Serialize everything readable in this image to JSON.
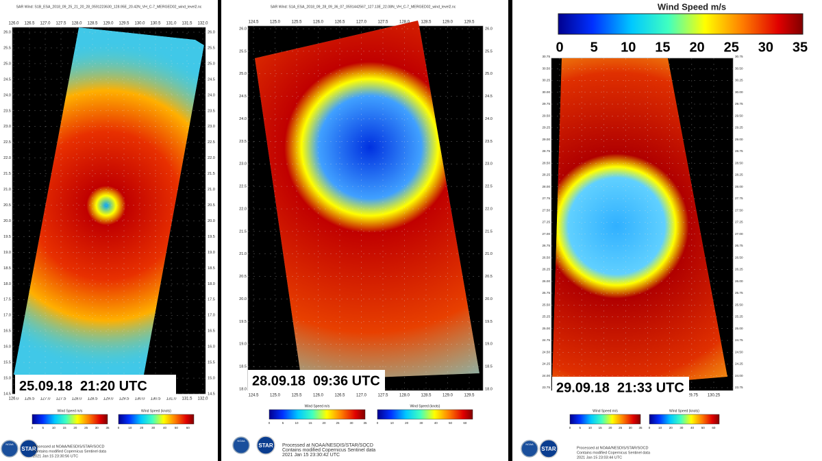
{
  "panels": [
    {
      "title": "SAR Wind: S1B_ESA_2018_09_25_21_20_28_0591223630_128.95E_20.42N_VH_C-7_MERGED02_wind_level2.nc",
      "lon_ticks": [
        "126.0",
        "126.5",
        "127.0",
        "127.5",
        "128.0",
        "128.5",
        "129.0",
        "129.5",
        "130.0",
        "130.5",
        "131.0",
        "131.5",
        "132.0"
      ],
      "lat_ticks": [
        "26.0",
        "25.5",
        "25.0",
        "24.5",
        "24.0",
        "23.5",
        "23.0",
        "22.5",
        "22.0",
        "21.5",
        "21.0",
        "20.5",
        "20.0",
        "19.5",
        "19.0",
        "18.5",
        "18.0",
        "17.5",
        "17.0",
        "16.5",
        "16.0",
        "15.5",
        "15.0",
        "14.5"
      ],
      "date": "25.09.18  21:20 UTC",
      "colorbars": [
        {
          "title": "Wind Speed m/s",
          "labels": [
            "0",
            "5",
            "10",
            "15",
            "20",
            "25",
            "30",
            "35"
          ]
        },
        {
          "title": "Wind Speed (knots)",
          "labels": [
            "0",
            "10",
            "20",
            "30",
            "40",
            "50",
            "60"
          ]
        }
      ],
      "logos": [
        "NOAA",
        "STAR"
      ],
      "footer": [
        "Processed at NOAA/NESDIS/STAR/SOCD",
        "Contains modified Copernicus Sentinel data",
        "2021 Jan 15 23:30:56 UTC"
      ]
    },
    {
      "title": "SAR Wind: S1A_ESA_2018_09_28_09_36_07_0591442567_127.13E_22.08N_VH_C-7_MERGED02_wind_level2.nc",
      "lon_ticks": [
        "124.5",
        "125.0",
        "125.5",
        "126.0",
        "126.5",
        "127.0",
        "127.5",
        "128.0",
        "128.5",
        "129.0",
        "129.5"
      ],
      "lat_ticks": [
        "26.0",
        "25.5",
        "25.0",
        "24.5",
        "24.0",
        "23.5",
        "23.0",
        "22.5",
        "22.0",
        "21.5",
        "21.0",
        "20.5",
        "20.0",
        "19.5",
        "19.0",
        "18.5",
        "18.0"
      ],
      "date": "28.09.18  09:36 UTC",
      "colorbars": [
        {
          "title": "Wind Speed m/s",
          "labels": [
            "0",
            "5",
            "10",
            "15",
            "20",
            "25",
            "30",
            "35"
          ]
        },
        {
          "title": "Wind Speed (knots)",
          "labels": [
            "0",
            "10",
            "20",
            "30",
            "40",
            "50",
            "60"
          ]
        }
      ],
      "logos": [
        "NOAA",
        "STAR"
      ],
      "footer": [
        "Processed at NOAA/NESDIS/STAR/SOCD",
        "Contains modified Copernicus Sentinel data",
        "2021 Jan 15 23:30:42 UTC"
      ]
    },
    {
      "title": "",
      "lon_ticks": [
        "126.75",
        "127.25",
        "127.75",
        "128.25",
        "128.75",
        "129.25",
        "129.75",
        "130.25"
      ],
      "lat_ticks": [
        "30.75",
        "30.50",
        "30.25",
        "30.00",
        "29.75",
        "29.50",
        "29.25",
        "29.00",
        "28.75",
        "28.50",
        "28.25",
        "28.00",
        "27.75",
        "27.50",
        "27.25",
        "27.00",
        "26.75",
        "26.50",
        "26.25",
        "26.00",
        "25.75",
        "25.50",
        "25.25",
        "25.00",
        "24.75",
        "24.50",
        "24.25",
        "24.00",
        "23.75"
      ],
      "date": "29.09.18  21:33 UTC",
      "colorbars": [
        {
          "title": "Wind Speed m/s",
          "labels": [
            "0",
            "5",
            "10",
            "15",
            "20",
            "25",
            "30",
            "35"
          ]
        },
        {
          "title": "Wind Speed (knots)",
          "labels": [
            "0",
            "10",
            "20",
            "30",
            "40",
            "50",
            "60"
          ]
        }
      ],
      "logos": [
        "NOAA",
        "STAR"
      ],
      "footer": [
        "Processed at NOAA/NESDIS/STAR/SOCD",
        "Contains modified Copernicus Sentinel data",
        "2021 Jan 15 23:03:44 UTC"
      ]
    }
  ],
  "legend": {
    "title": "Wind Speed m/s",
    "ticks": [
      "0",
      "5",
      "10",
      "15",
      "20",
      "25",
      "30",
      "35"
    ]
  }
}
